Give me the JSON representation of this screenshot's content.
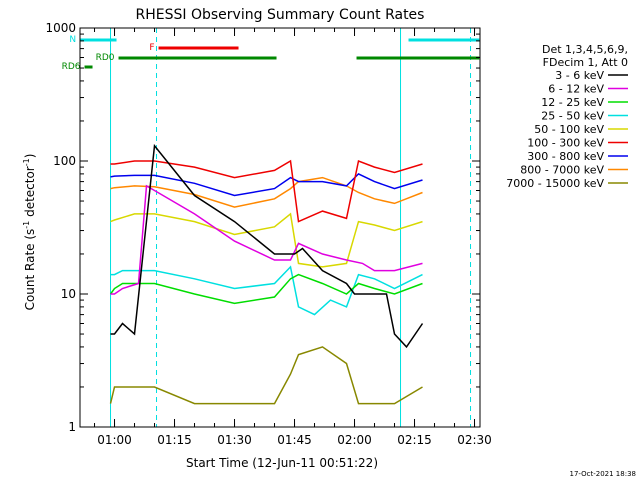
{
  "chart_data": {
    "type": "line",
    "title": "RHESSI Observing Summary Count Rates",
    "xlabel": "Start Time (12-Jun-11 00:51:22)",
    "ylabel_main": "Count Rate (s",
    "ylabel_sup1": "-1",
    "ylabel_mid": " detector",
    "ylabel_sup2": "-1",
    "ylabel_end": ")",
    "y_scale": "log",
    "ylim": [
      1,
      1000
    ],
    "xlim_minutes": [
      51.37,
      151.37
    ],
    "x_ticks": [
      {
        "label": "01:00",
        "minute": 60
      },
      {
        "label": "01:15",
        "minute": 75
      },
      {
        "label": "01:30",
        "minute": 90
      },
      {
        "label": "01:45",
        "minute": 105
      },
      {
        "label": "02:00",
        "minute": 120
      },
      {
        "label": "02:15",
        "minute": 135
      },
      {
        "label": "02:30",
        "minute": 150
      }
    ],
    "y_ticks": [
      {
        "label": "1",
        "value": 1
      },
      {
        "label": "10",
        "value": 10
      },
      {
        "label": "100",
        "value": 100
      },
      {
        "label": "1000",
        "value": 1000
      }
    ],
    "legend_header_1": "Det 1,3,4,5,6,9,",
    "legend_header_2": "FDecim 1, Att 0",
    "legend_position": "right",
    "series": [
      {
        "name": "3 - 6 keV",
        "color": "#000000",
        "minutes": [
          59,
          60,
          62,
          65,
          70,
          80,
          90,
          100,
          105,
          107,
          112,
          118,
          120,
          124,
          128,
          130,
          133,
          137
        ],
        "values": [
          5,
          5,
          6,
          5,
          130,
          55,
          35,
          20,
          20,
          22,
          15,
          12,
          10,
          10,
          10,
          5,
          4,
          6
        ]
      },
      {
        "name": "6 - 12 keV",
        "color": "#e000e0",
        "minutes": [
          59,
          60,
          62,
          66,
          68,
          70,
          80,
          90,
          100,
          104,
          106,
          112,
          118,
          122,
          125,
          130,
          137
        ],
        "values": [
          10,
          10,
          11,
          12,
          65,
          60,
          40,
          25,
          18,
          18,
          24,
          20,
          18,
          17,
          15,
          15,
          17
        ]
      },
      {
        "name": "12 - 25 keV",
        "color": "#00dd00",
        "minutes": [
          59,
          60,
          62,
          66,
          70,
          80,
          90,
          100,
          104,
          106,
          112,
          118,
          121,
          125,
          130,
          137
        ],
        "values": [
          10,
          11,
          12,
          12,
          12,
          10,
          8.5,
          9.5,
          13,
          14,
          12,
          10,
          12,
          11,
          10,
          12
        ]
      },
      {
        "name": "25 - 50 keV",
        "color": "#00e0e0",
        "minutes": [
          59,
          60,
          62,
          66,
          70,
          80,
          90,
          100,
          104,
          106,
          110,
          114,
          118,
          121,
          125,
          130,
          137
        ],
        "values": [
          14,
          14,
          15,
          15,
          15,
          13,
          11,
          12,
          16,
          8,
          7,
          9,
          8,
          14,
          13,
          11,
          14
        ]
      },
      {
        "name": "50 - 100 keV",
        "color": "#d8d800",
        "minutes": [
          59,
          60,
          65,
          70,
          80,
          90,
          100,
          104,
          106,
          112,
          118,
          121,
          125,
          130,
          137
        ],
        "values": [
          35,
          36,
          40,
          40,
          35,
          28,
          32,
          40,
          17,
          16,
          17,
          35,
          33,
          30,
          35
        ]
      },
      {
        "name": "100 - 300 keV",
        "color": "#ee0000",
        "minutes": [
          59,
          60,
          65,
          70,
          80,
          90,
          100,
          104,
          106,
          112,
          118,
          121,
          125,
          130,
          137
        ],
        "values": [
          95,
          95,
          100,
          100,
          90,
          75,
          85,
          100,
          35,
          42,
          37,
          100,
          90,
          82,
          95
        ]
      },
      {
        "name": "300 - 800 keV",
        "color": "#0000ee",
        "minutes": [
          59,
          60,
          65,
          70,
          80,
          90,
          100,
          104,
          106,
          112,
          118,
          121,
          125,
          130,
          137
        ],
        "values": [
          76,
          77,
          78,
          78,
          68,
          55,
          62,
          75,
          70,
          70,
          65,
          80,
          70,
          62,
          72
        ]
      },
      {
        "name": "800 - 7000 keV",
        "color": "#ff8800",
        "minutes": [
          59,
          60,
          65,
          70,
          80,
          90,
          100,
          104,
          106,
          112,
          118,
          121,
          125,
          130,
          137
        ],
        "values": [
          62,
          63,
          65,
          64,
          56,
          45,
          52,
          62,
          70,
          75,
          65,
          58,
          52,
          48,
          58
        ]
      },
      {
        "name": "7000 - 15000 keV",
        "color": "#888800",
        "minutes": [
          59,
          60,
          65,
          70,
          80,
          90,
          100,
          104,
          106,
          112,
          118,
          121,
          125,
          130,
          137
        ],
        "values": [
          1.5,
          2,
          2,
          2,
          1.5,
          1.5,
          1.5,
          2.5,
          3.5,
          4,
          3,
          1.5,
          1.5,
          1.5,
          2
        ]
      }
    ],
    "flags": [
      {
        "label": "N",
        "color": "#00e0e0",
        "segments": [
          [
            51.4,
            60.5
          ],
          [
            133.5,
            151.2
          ]
        ],
        "row": 0
      },
      {
        "label": "F",
        "color": "#ee0000",
        "segments": [
          [
            71,
            91
          ]
        ],
        "row": 1
      },
      {
        "label": "RD0",
        "color": "#008800",
        "segments": [
          [
            61,
            100.5
          ],
          [
            120.5,
            151.2
          ]
        ],
        "row": 2
      },
      {
        "label": "RD6",
        "color": "#008800",
        "segments": [
          [
            52.5,
            54.5
          ]
        ],
        "row": 3
      }
    ],
    "eclipse_lines_solid": [
      59,
      131.5
    ],
    "eclipse_lines_dashed": [
      70.5,
      149
    ]
  },
  "footer": {
    "timestamp": "17-Oct-2021 18:38"
  }
}
